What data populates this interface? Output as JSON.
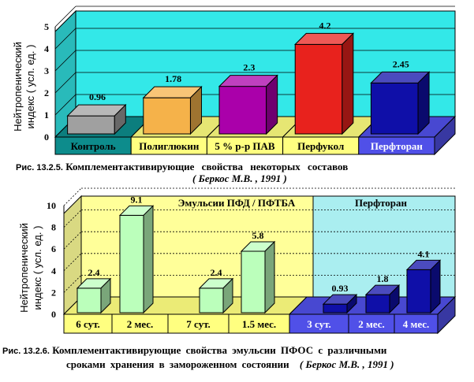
{
  "chart_data": [
    {
      "type": "bar",
      "ylabel": "Нейтропенический индекс ( усл. ед. )",
      "ylim": [
        0,
        5
      ],
      "yticks": [
        "0",
        "1",
        "2",
        "3",
        "4",
        "5"
      ],
      "categories": [
        "Контроль",
        "Полиглюкин",
        "5 % р-р ПАВ",
        "Перфукол",
        "Перфторан"
      ],
      "values": [
        0.96,
        1.78,
        2.3,
        4.2,
        2.45
      ],
      "value_labels": [
        "0.96",
        "1.78",
        "2.3",
        "4.2",
        "2.45"
      ],
      "colors": {
        "bars": [
          "#a0a0a0",
          "#f5b24a",
          "#aa00aa",
          "#e8221d",
          "#0f0fa8"
        ],
        "back_wall": "#33e8e8",
        "floor": [
          "#0d8c8c",
          "#ffff80",
          "#ffff80",
          "#ffff80",
          "#5050e8"
        ]
      },
      "caption": {
        "number": "Рис. 13.2.5.",
        "text": "Комплементактивирующие свойства некоторых составов",
        "source": "( Беркос М.В. , 1991 )"
      }
    },
    {
      "type": "bar",
      "ylabel": "Нейтропенический индекс ( усл. ед. )",
      "ylim": [
        0,
        10
      ],
      "yticks": [
        "0",
        "2",
        "4",
        "6",
        "8",
        "10"
      ],
      "categories": [
        "6 сут.",
        "2 мес.",
        "7 сут.",
        "1.5 мес.",
        "3 сут.",
        "2 мес.",
        "4 мес."
      ],
      "values": [
        2.4,
        9.1,
        2.4,
        5.8,
        0.93,
        1.8,
        4.1
      ],
      "value_labels": [
        "2.4",
        "9.1",
        "2.4",
        "5.8",
        "0.93",
        "1.8",
        "4.1"
      ],
      "groups": [
        "Эмульсии ПФД / ПФТБА",
        "Перфторан"
      ],
      "colors": {
        "bars": [
          "#bbffbb",
          "#bbffbb",
          "#bbffbb",
          "#bbffbb",
          "#0f0fa8",
          "#0f0fa8",
          "#0f0fa8"
        ],
        "back_wall": [
          "#ffff99",
          "#aaeef0"
        ],
        "floor": [
          "#ffff80",
          "#5050e8"
        ]
      },
      "caption": {
        "number": "Рис. 13.2.6.",
        "text_line1": "Комплементактивирующие свойства эмульсии ПФОС с различными",
        "text_line2": "сроками хранения в замороженном состоянии",
        "source": "( Беркос М.В. , 1991 )"
      }
    }
  ]
}
